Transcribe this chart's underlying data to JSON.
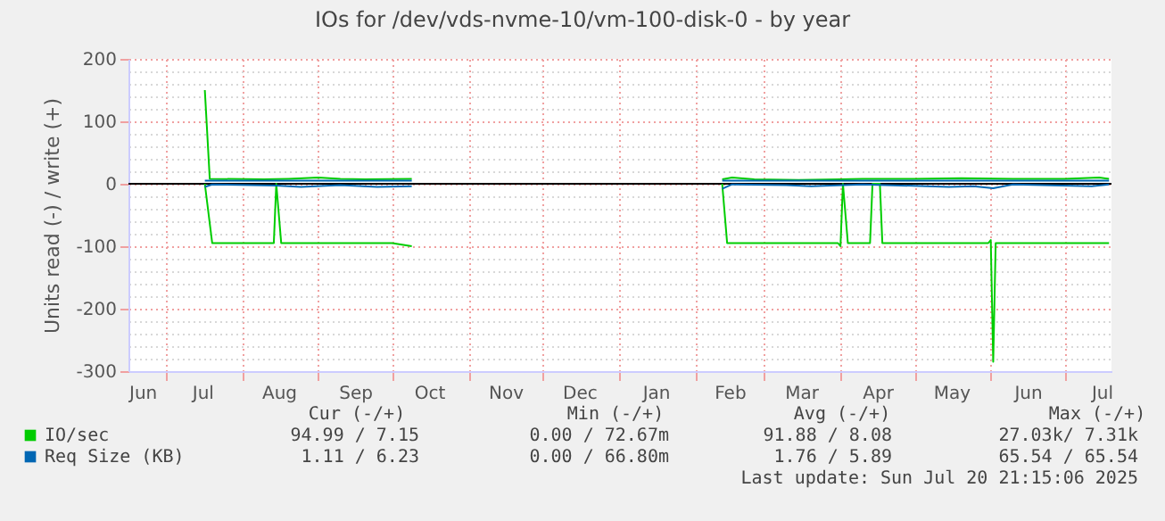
{
  "chart_data": {
    "type": "line",
    "title": "IOs for /dev/vds-nvme-10/vm-100-disk-0 - by year",
    "ylabel": "Units read (-) / write (+)",
    "xlim": [
      "2024-06-16",
      "2025-07-20"
    ],
    "xticks": [
      {
        "value": "2024-06-16",
        "label": "Jun"
      },
      {
        "value": "2024-07-01",
        "label": null
      },
      {
        "value": "2024-07-16",
        "label": "Jul"
      },
      {
        "value": "2024-08-01",
        "label": null
      },
      {
        "value": "2024-08-16",
        "label": "Aug"
      },
      {
        "value": "2024-09-01",
        "label": null
      },
      {
        "value": "2024-09-16",
        "label": "Sep"
      },
      {
        "value": "2024-10-01",
        "label": null
      },
      {
        "value": "2024-10-16",
        "label": "Oct"
      },
      {
        "value": "2024-11-01",
        "label": null
      },
      {
        "value": "2024-11-16",
        "label": "Nov"
      },
      {
        "value": "2024-12-01",
        "label": null
      },
      {
        "value": "2024-12-16",
        "label": "Dec"
      },
      {
        "value": "2025-01-01",
        "label": null
      },
      {
        "value": "2025-01-16",
        "label": "Jan"
      },
      {
        "value": "2025-02-01",
        "label": null
      },
      {
        "value": "2025-02-15",
        "label": "Feb"
      },
      {
        "value": "2025-03-01",
        "label": null
      },
      {
        "value": "2025-03-16",
        "label": "Mar"
      },
      {
        "value": "2025-04-01",
        "label": null
      },
      {
        "value": "2025-04-16",
        "label": "Apr"
      },
      {
        "value": "2025-05-01",
        "label": null
      },
      {
        "value": "2025-05-16",
        "label": "May"
      },
      {
        "value": "2025-06-01",
        "label": null
      },
      {
        "value": "2025-06-16",
        "label": "Jun"
      },
      {
        "value": "2025-07-01",
        "label": null
      },
      {
        "value": "2025-07-16",
        "label": "Jul"
      }
    ],
    "ylim": [
      -300,
      200
    ],
    "yticks": [
      -300,
      {
        "value": -280,
        "label": null
      },
      {
        "value": -260,
        "label": null
      },
      {
        "value": -240,
        "label": null
      },
      {
        "value": -220,
        "label": null
      },
      -200,
      {
        "value": -180,
        "label": null
      },
      {
        "value": -160,
        "label": null
      },
      {
        "value": -140,
        "label": null
      },
      {
        "value": -120,
        "label": null
      },
      -100,
      {
        "value": -80,
        "label": null
      },
      {
        "value": -60,
        "label": null
      },
      {
        "value": -40,
        "label": null
      },
      {
        "value": -20,
        "label": null
      },
      0,
      {
        "value": 20,
        "label": null
      },
      {
        "value": 40,
        "label": null
      },
      {
        "value": 60,
        "label": null
      },
      {
        "value": 80,
        "label": null
      },
      100,
      {
        "value": 120,
        "label": null
      },
      {
        "value": 140,
        "label": null
      },
      {
        "value": 160,
        "label": null
      },
      {
        "value": 180,
        "label": null
      },
      200
    ],
    "grid": true,
    "legend": "bottom",
    "series": [
      {
        "name": "IO/sec",
        "color": "#00cc00",
        "x": [
          "2024-07-17",
          "2024-07-19",
          "2024-08-10",
          "2024-08-20",
          "2024-09-01",
          "2024-09-10",
          "2024-09-20",
          "2024-10-09",
          "2024-12-01",
          "2025-02-12",
          "2025-02-16",
          "2025-02-25",
          "2025-03-15",
          "2025-04-01",
          "2025-04-10",
          "2025-05-01",
          "2025-05-20",
          "2025-06-10",
          "2025-07-01",
          "2025-07-15",
          "2025-07-19"
        ],
        "values": [
          150,
          8,
          7,
          8,
          10,
          8,
          7,
          8,
          null,
          7,
          10,
          7,
          6,
          7,
          8,
          8,
          9,
          8,
          8,
          10,
          8
        ]
      },
      {
        "color": "#00cd00",
        "x": [
          "2024-07-17",
          "2024-07-20",
          "2024-08-14",
          "2024-08-15",
          "2024-08-17",
          "2024-09-15",
          "2024-10-01",
          "2024-10-09",
          "2024-12-01",
          "2025-02-12",
          "2025-02-14",
          "2025-03-31",
          "2025-04-01",
          "2025-04-02",
          "2025-04-04",
          "2025-04-13",
          "2025-04-14",
          "2025-04-17",
          "2025-04-18",
          "2025-05-31",
          "2025-06-01",
          "2025-06-02",
          "2025-06-03",
          "2025-07-19"
        ],
        "values": [
          0,
          -95,
          -95,
          0,
          -95,
          -95,
          -95,
          -100,
          null,
          0,
          -95,
          -95,
          -100,
          0,
          -95,
          -95,
          0,
          0,
          -95,
          -95,
          -90,
          -285,
          -95,
          -95
        ]
      },
      {
        "name": "Req Size (KB)",
        "color": "#0066b3",
        "x": [
          "2024-07-17",
          "2024-10-09",
          "2024-12-01",
          "2025-02-12",
          "2025-07-19"
        ],
        "values": [
          5,
          5,
          null,
          5,
          5
        ]
      },
      {
        "color": "#0068b5",
        "x": [
          "2024-07-17",
          "2024-07-20",
          "2024-08-15",
          "2024-08-25",
          "2024-09-10",
          "2024-09-25",
          "2024-10-09",
          "2024-12-01",
          "2025-02-12",
          "2025-02-16",
          "2025-03-10",
          "2025-03-20",
          "2025-04-10",
          "2025-05-15",
          "2025-05-25",
          "2025-06-02",
          "2025-06-10",
          "2025-07-12",
          "2025-07-19"
        ],
        "values": [
          -5,
          -1,
          -3,
          -5,
          -2,
          -5,
          -4,
          null,
          -8,
          -1,
          -2,
          -4,
          -1,
          -5,
          -4,
          -7,
          -1,
          -4,
          -1
        ]
      }
    ],
    "ref_lines": [
      {
        "axis": "y",
        "value": 0,
        "color": "#000000"
      }
    ],
    "annotations": [
      "Cur (-/+)",
      "Min (-/+)",
      "Avg (-/+)",
      "Max (-/+)",
      "94.99 /    7.15",
      "0.00 /   72.67m",
      "91.88 /    8.08",
      "27.03k/    7.31k",
      "1.11 /    6.23",
      "0.00 /   66.80m",
      "1.76 /    5.89",
      "65.54 /   65.54",
      "Last update: Sun Jul 20 21:15:06 2025"
    ]
  }
}
